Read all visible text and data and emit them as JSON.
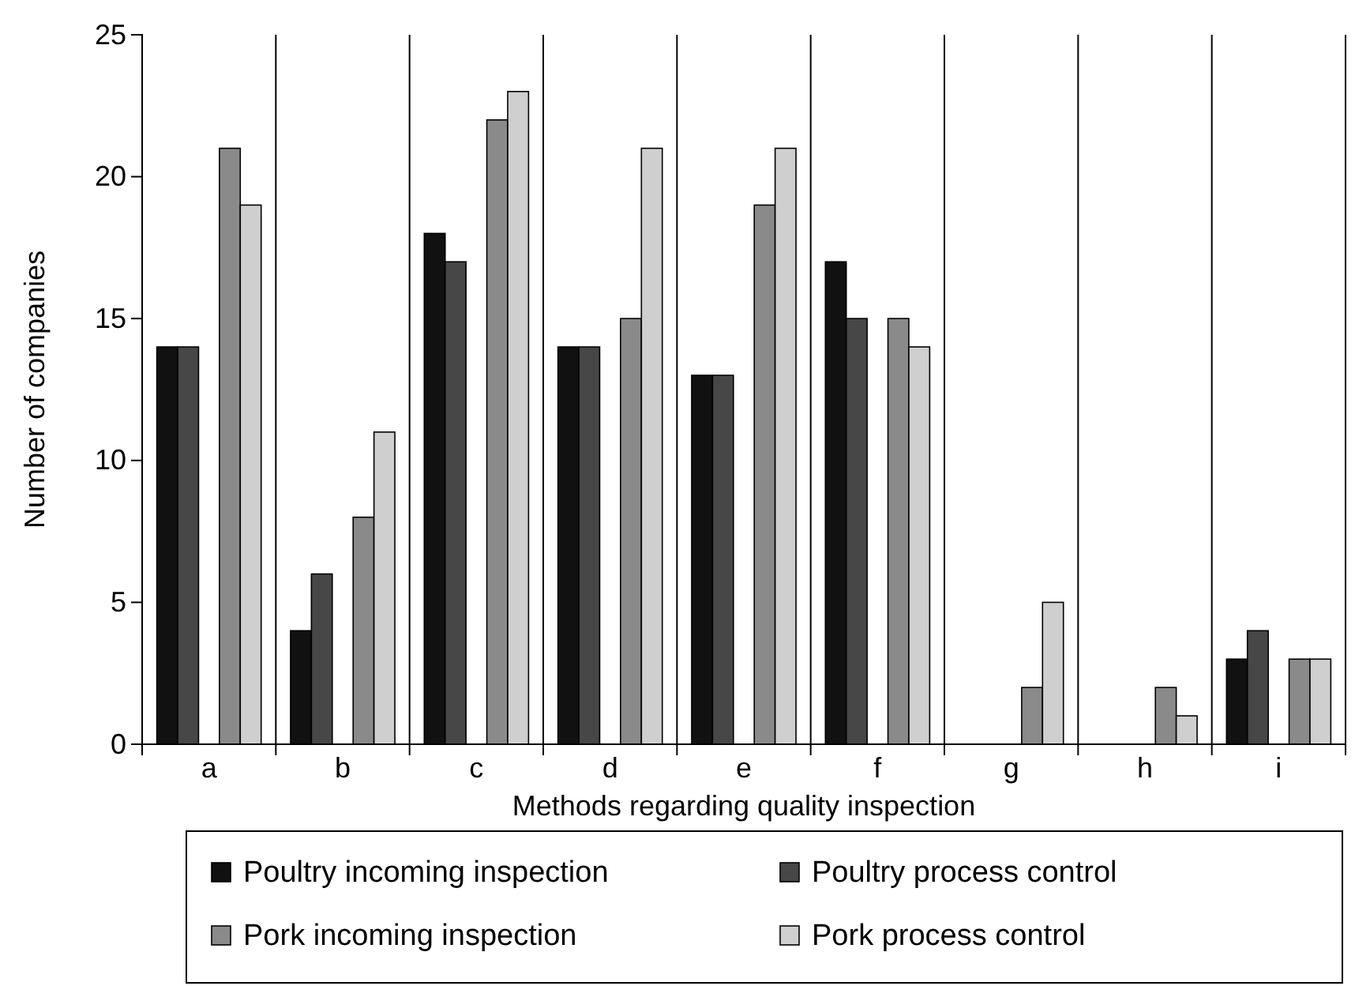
{
  "chart_data": {
    "type": "bar",
    "xlabel": "Methods regarding quality inspection",
    "ylabel": "Number of companies",
    "categories": [
      "a",
      "b",
      "c",
      "d",
      "e",
      "f",
      "g",
      "h",
      "i"
    ],
    "series": [
      {
        "name": "Poultry incoming inspection",
        "color": "#111111",
        "values": [
          14,
          4,
          18,
          14,
          13,
          17,
          0,
          0,
          3
        ]
      },
      {
        "name": "Poultry process control",
        "color": "#474747",
        "values": [
          14,
          6,
          17,
          14,
          13,
          15,
          0,
          0,
          4
        ]
      },
      {
        "name": "Pork incoming inspection",
        "color": "#8a8a8a",
        "values": [
          21,
          8,
          22,
          15,
          19,
          15,
          2,
          2,
          3
        ]
      },
      {
        "name": "Pork process control",
        "color": "#cfcfcf",
        "values": [
          19,
          11,
          23,
          21,
          21,
          14,
          5,
          1,
          3
        ]
      }
    ],
    "ylim": [
      0,
      25
    ],
    "yticks": [
      0,
      5,
      10,
      15,
      20,
      25
    ],
    "grid": "x",
    "legend": "bottom"
  }
}
